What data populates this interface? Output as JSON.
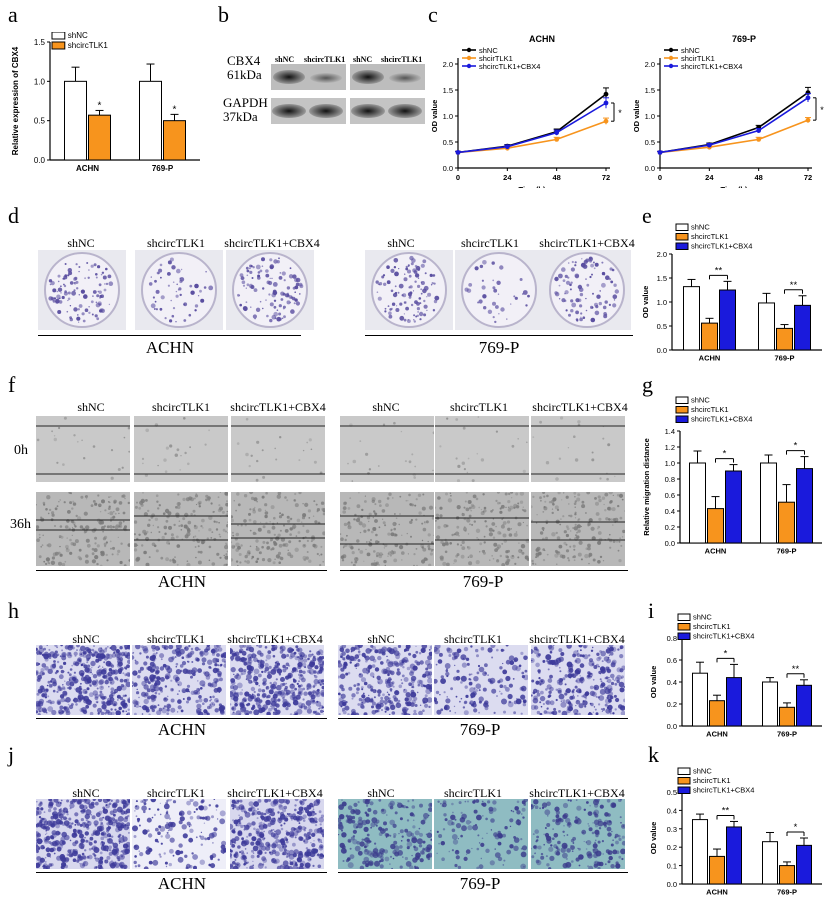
{
  "panel_labels": {
    "a": "a",
    "b": "b",
    "c": "c",
    "d": "d",
    "e": "e",
    "f": "f",
    "g": "g",
    "h": "h",
    "i": "i",
    "j": "j",
    "k": "k"
  },
  "colors": {
    "white": "#ffffff",
    "orange": "#f7941d",
    "blue": "#1a1adc",
    "black": "#000000",
    "crystal": "#5a4ea0",
    "invasion": "#3d3a9a",
    "migration_teal": "#6fa8b0"
  },
  "western": {
    "cbx4_label": "CBX4",
    "cbx4_kda": "61kDa",
    "gapdh_label": "GAPDH",
    "gapdh_kda": "37kDa",
    "lanes": [
      "shNC",
      "shcircTLK1",
      "shNC",
      "shcircTLK1"
    ]
  },
  "conditions": [
    "shNC",
    "shcircTLK1",
    "shcircTLK1+CBX4"
  ],
  "cell_lines": [
    "ACHN",
    "769-P"
  ],
  "time_labels": [
    "0h",
    "36h"
  ],
  "chart_data": [
    {
      "panel": "a",
      "type": "bar",
      "ylabel": "Relative expression of CBX4",
      "categories": [
        "ACHN",
        "769-P"
      ],
      "ylim": [
        0,
        1.5
      ],
      "yticks": [
        "0.0",
        "0.5",
        "1.0",
        "1.5"
      ],
      "series": [
        {
          "name": "shNC",
          "values": [
            1.0,
            1.0
          ],
          "err": [
            0.18,
            0.22
          ]
        },
        {
          "name": "shcircTLK1",
          "values": [
            0.57,
            0.5
          ],
          "err": [
            0.06,
            0.08
          ]
        }
      ],
      "sig": [
        "*",
        "*"
      ]
    },
    {
      "panel": "c",
      "type": "line",
      "title": "ACHN",
      "xlabel": "Time(h)",
      "ylabel": "OD value",
      "x": [
        0,
        24,
        48,
        72
      ],
      "xticks": [
        "0",
        "24",
        "48",
        "72"
      ],
      "ylim": [
        0,
        2.0
      ],
      "yticks": [
        "0.0",
        "0.5",
        "1.0",
        "1.5",
        "2.0"
      ],
      "series": [
        {
          "name": "shNC",
          "values": [
            0.3,
            0.42,
            0.7,
            1.42
          ],
          "err": [
            0.02,
            0.03,
            0.05,
            0.12
          ]
        },
        {
          "name": "shcirTLK1",
          "values": [
            0.3,
            0.38,
            0.55,
            0.9
          ],
          "err": [
            0.02,
            0.03,
            0.04,
            0.06
          ]
        },
        {
          "name": "shcircTLK1+CBX4",
          "values": [
            0.3,
            0.41,
            0.68,
            1.25
          ],
          "err": [
            0.02,
            0.03,
            0.05,
            0.1
          ]
        }
      ],
      "sig": "*"
    },
    {
      "panel": "c2",
      "type": "line",
      "title": "769-P",
      "xlabel": "Time(h)",
      "ylabel": "OD value",
      "x": [
        0,
        24,
        48,
        72
      ],
      "xticks": [
        "0",
        "24",
        "48",
        "72"
      ],
      "ylim": [
        0,
        2.0
      ],
      "yticks": [
        "0.0",
        "0.5",
        "1.0",
        "1.5",
        "2.0"
      ],
      "series": [
        {
          "name": "shNC",
          "values": [
            0.3,
            0.45,
            0.78,
            1.45
          ],
          "err": [
            0.02,
            0.03,
            0.04,
            0.1
          ]
        },
        {
          "name": "shcirTLK1",
          "values": [
            0.3,
            0.4,
            0.55,
            0.92
          ],
          "err": [
            0.02,
            0.03,
            0.04,
            0.05
          ]
        },
        {
          "name": "shcircTLK1+CBX4",
          "values": [
            0.3,
            0.44,
            0.72,
            1.35
          ],
          "err": [
            0.02,
            0.03,
            0.04,
            0.08
          ]
        }
      ],
      "sig": "*"
    },
    {
      "panel": "e",
      "type": "bar",
      "ylabel": "OD value",
      "categories": [
        "ACHN",
        "769-P"
      ],
      "ylim": [
        0,
        2.0
      ],
      "yticks": [
        "0.0",
        "0.5",
        "1.0",
        "1.5",
        "2.0"
      ],
      "series": [
        {
          "name": "shNC",
          "values": [
            1.32,
            0.98
          ],
          "err": [
            0.15,
            0.2
          ]
        },
        {
          "name": "shcircTLK1",
          "values": [
            0.56,
            0.45
          ],
          "err": [
            0.1,
            0.08
          ]
        },
        {
          "name": "shcircTLK1+CBX4",
          "values": [
            1.25,
            0.93
          ],
          "err": [
            0.18,
            0.2
          ]
        }
      ],
      "sig": [
        "**",
        "**"
      ]
    },
    {
      "panel": "g",
      "type": "bar",
      "ylabel": "Relative migration distance",
      "categories": [
        "ACHN",
        "769-P"
      ],
      "ylim": [
        0,
        1.4
      ],
      "yticks": [
        "0.0",
        "0.2",
        "0.4",
        "0.6",
        "0.8",
        "1.0",
        "1.2",
        "1.4"
      ],
      "series": [
        {
          "name": "shNC",
          "values": [
            1.0,
            1.0
          ],
          "err": [
            0.15,
            0.1
          ]
        },
        {
          "name": "shcircTLK1",
          "values": [
            0.43,
            0.51
          ],
          "err": [
            0.15,
            0.22
          ]
        },
        {
          "name": "shcircTLK1+CBX4",
          "values": [
            0.9,
            0.93
          ],
          "err": [
            0.08,
            0.15
          ]
        }
      ],
      "sig": [
        "*",
        "*"
      ]
    },
    {
      "panel": "i",
      "type": "bar",
      "ylabel": "OD value",
      "categories": [
        "ACHN",
        "769-P"
      ],
      "ylim": [
        0,
        0.8
      ],
      "yticks": [
        "0.0",
        "0.2",
        "0.4",
        "0.6",
        "0.8"
      ],
      "series": [
        {
          "name": "shNC",
          "values": [
            0.48,
            0.4
          ],
          "err": [
            0.1,
            0.04
          ]
        },
        {
          "name": "shcircTLK1",
          "values": [
            0.23,
            0.17
          ],
          "err": [
            0.05,
            0.04
          ]
        },
        {
          "name": "shcircTLK1+CBX4",
          "values": [
            0.44,
            0.37
          ],
          "err": [
            0.12,
            0.05
          ]
        }
      ],
      "sig": [
        "*",
        "**"
      ]
    },
    {
      "panel": "k",
      "type": "bar",
      "ylabel": "OD value",
      "categories": [
        "ACHN",
        "769-P"
      ],
      "ylim": [
        0,
        0.5
      ],
      "yticks": [
        "0.0",
        "0.1",
        "0.2",
        "0.3",
        "0.4",
        "0.5"
      ],
      "series": [
        {
          "name": "shNC",
          "values": [
            0.35,
            0.23
          ],
          "err": [
            0.03,
            0.05
          ]
        },
        {
          "name": "shcircTLK1",
          "values": [
            0.15,
            0.1
          ],
          "err": [
            0.04,
            0.02
          ]
        },
        {
          "name": "shcircTLK1+CBX4",
          "values": [
            0.31,
            0.21
          ],
          "err": [
            0.03,
            0.04
          ]
        }
      ],
      "sig": [
        "**",
        "*"
      ]
    }
  ]
}
